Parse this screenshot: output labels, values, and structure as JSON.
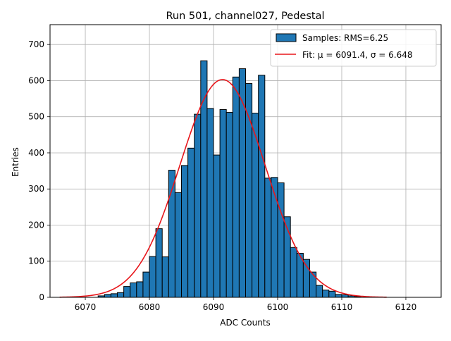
{
  "chart_data": {
    "type": "bar",
    "title": "Run 501, channel027, Pedestal",
    "xlabel": "ADC Counts",
    "ylabel": "Entries",
    "xlim": [
      6064.5,
      6125.5
    ],
    "ylim": [
      0,
      755
    ],
    "xticks": [
      6070,
      6080,
      6090,
      6100,
      6110,
      6120
    ],
    "yticks": [
      0,
      100,
      200,
      300,
      400,
      500,
      600,
      700
    ],
    "grid": true,
    "legend_position": "top-right",
    "histogram": {
      "name": "Samples: RMS=6.25",
      "bin_start": 6072,
      "bin_width": 1,
      "counts": [
        4,
        8,
        10,
        13,
        30,
        40,
        43,
        70,
        113,
        190,
        112,
        352,
        290,
        365,
        413,
        507,
        655,
        523,
        394,
        520,
        512,
        610,
        633,
        592,
        510,
        615,
        330,
        332,
        317,
        223,
        138,
        122,
        105,
        70,
        33,
        20,
        17,
        8,
        7,
        4,
        2
      ]
    },
    "fit": {
      "name": "Fit: μ = 6091.4, σ = 6.648",
      "mu": 6091.4,
      "sigma": 6.648,
      "amplitude": 603,
      "x_range": [
        6066,
        6117
      ]
    },
    "colors": {
      "bar_fill": "#1f77b4",
      "bar_edge": "#000000",
      "fit_line": "#e8161b",
      "grid": "#b0b0b0"
    }
  }
}
